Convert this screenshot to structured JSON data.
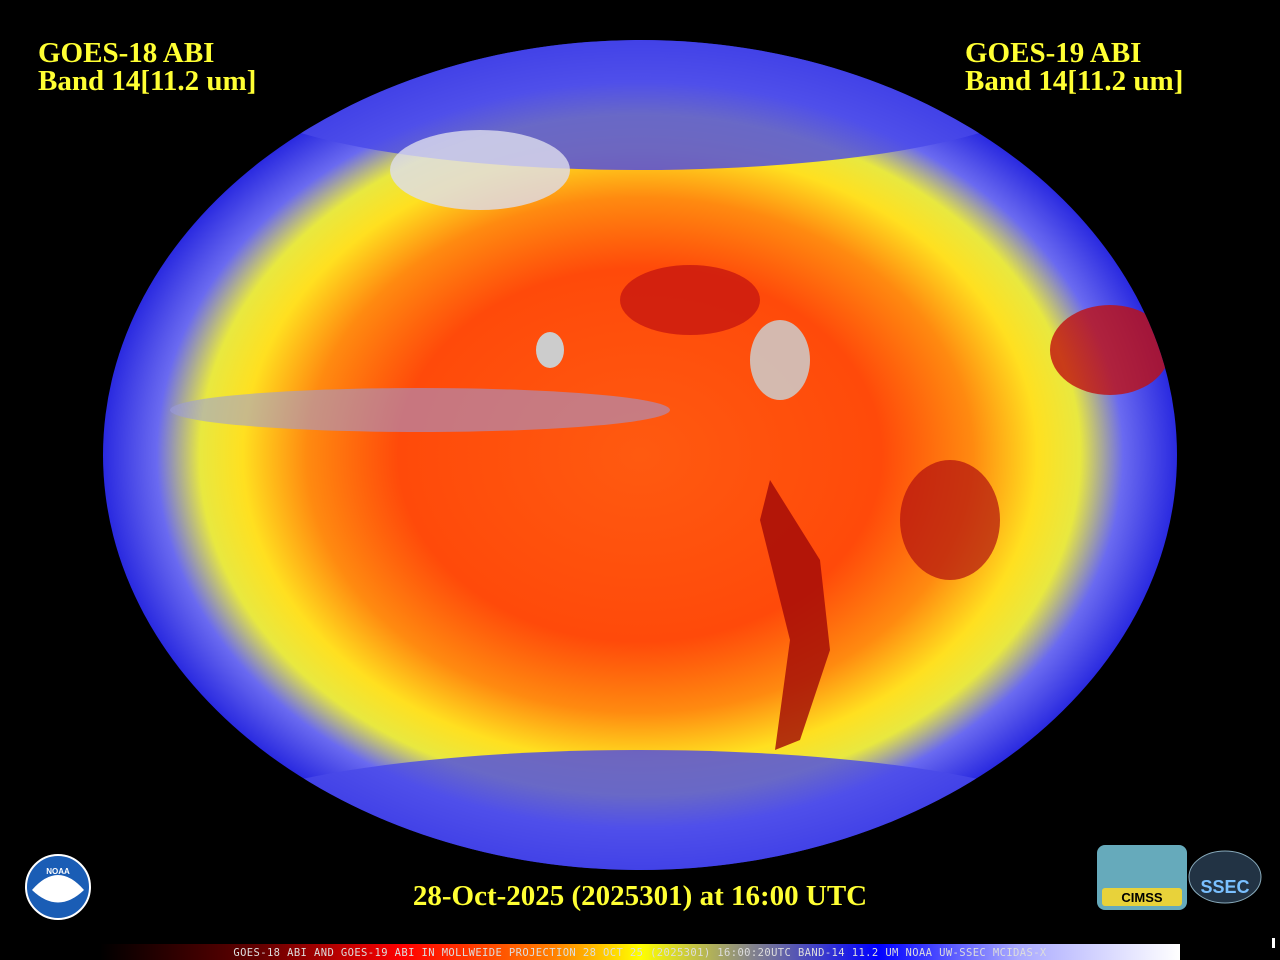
{
  "left_label": {
    "satellite": "GOES-18 ABI",
    "band": "Band 14[11.2 um]"
  },
  "right_label": {
    "satellite": "GOES-19 ABI",
    "band": "Band 14[11.2 um]"
  },
  "timestamp": "28-Oct-2025 (2025301) at 16:00 UTC",
  "footer": "GOES-18 ABI AND GOES-19 ABI IN MOLLWEIDE PROJECTION 28 OCT 25 (2025301) 16:00:20UTC BAND-14 11.2 UM NOAA UW-SSEC MCIDAS-X",
  "logos": {
    "noaa": "NOAA",
    "cimss": "CIMSS",
    "ssec": "SSEC"
  }
}
